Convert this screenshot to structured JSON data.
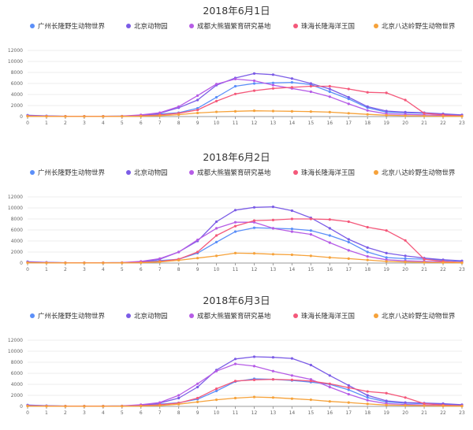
{
  "chart_data": [
    {
      "type": "line",
      "title": "2018年6月1日",
      "x": [
        0,
        1,
        2,
        3,
        4,
        5,
        6,
        7,
        8,
        9,
        10,
        11,
        12,
        13,
        14,
        15,
        16,
        17,
        18,
        19,
        20,
        21,
        22,
        23
      ],
      "ylim": [
        0,
        12000
      ],
      "yticks": [
        0,
        2000,
        4000,
        6000,
        8000,
        10000,
        12000
      ],
      "legend_position": "top",
      "grid": true,
      "series": [
        {
          "name": "广州长隆野生动物世界",
          "color": "#5b8ff9",
          "values": [
            250,
            120,
            60,
            50,
            50,
            80,
            200,
            450,
            700,
            1500,
            3500,
            5500,
            6000,
            6100,
            6200,
            5800,
            4500,
            3200,
            1600,
            800,
            700,
            600,
            400,
            250
          ]
        },
        {
          "name": "北京动物园",
          "color": "#7b5ce6",
          "values": [
            200,
            100,
            50,
            40,
            40,
            60,
            200,
            600,
            1600,
            3000,
            5700,
            7000,
            7800,
            7600,
            6900,
            6000,
            5000,
            3500,
            1800,
            1000,
            800,
            700,
            500,
            300
          ]
        },
        {
          "name": "成都大熊猫繁育研究基地",
          "color": "#b65ce6",
          "values": [
            150,
            80,
            40,
            40,
            40,
            80,
            300,
            700,
            1800,
            3800,
            5900,
            6800,
            6500,
            5700,
            5100,
            4500,
            3600,
            2300,
            1100,
            500,
            400,
            300,
            200,
            100
          ]
        },
        {
          "name": "珠海长隆海洋王国",
          "color": "#f4587a",
          "values": [
            100,
            60,
            40,
            40,
            40,
            60,
            120,
            300,
            600,
            1200,
            2800,
            4100,
            4700,
            5100,
            5300,
            5500,
            5500,
            5000,
            4400,
            4300,
            3000,
            600,
            300,
            100
          ]
        },
        {
          "name": "北京八达岭野生动物世界",
          "color": "#f6a23a",
          "values": [
            50,
            30,
            20,
            20,
            20,
            30,
            60,
            150,
            350,
            650,
            850,
            950,
            1050,
            1000,
            950,
            900,
            800,
            600,
            400,
            250,
            150,
            100,
            60,
            40
          ]
        }
      ]
    },
    {
      "type": "line",
      "title": "2018年6月2日",
      "x": [
        0,
        1,
        2,
        3,
        4,
        5,
        6,
        7,
        8,
        9,
        10,
        11,
        12,
        13,
        14,
        15,
        16,
        17,
        18,
        19,
        20,
        21,
        22,
        23
      ],
      "ylim": [
        0,
        12000
      ],
      "yticks": [
        0,
        2000,
        4000,
        6000,
        8000,
        10000,
        12000
      ],
      "legend_position": "top",
      "grid": true,
      "series": [
        {
          "name": "广州长隆野生动物世界",
          "color": "#5b8ff9",
          "values": [
            250,
            120,
            60,
            50,
            50,
            80,
            200,
            450,
            700,
            1800,
            3800,
            5700,
            6400,
            6300,
            6200,
            5900,
            5000,
            3800,
            2000,
            1000,
            800,
            700,
            500,
            300
          ]
        },
        {
          "name": "北京动物园",
          "color": "#7b5ce6",
          "values": [
            200,
            100,
            50,
            40,
            40,
            60,
            200,
            700,
            2000,
            4000,
            7500,
            9600,
            10100,
            10200,
            9500,
            8200,
            6300,
            4300,
            2800,
            1800,
            1300,
            900,
            600,
            400
          ]
        },
        {
          "name": "成都大熊猫繁育研究基地",
          "color": "#b65ce6",
          "values": [
            150,
            80,
            40,
            40,
            40,
            80,
            300,
            800,
            2000,
            4200,
            6300,
            7400,
            7400,
            6300,
            5700,
            5200,
            3700,
            2300,
            1200,
            600,
            400,
            300,
            200,
            100
          ]
        },
        {
          "name": "珠海长隆海洋王国",
          "color": "#f4587a",
          "values": [
            100,
            60,
            40,
            40,
            40,
            60,
            120,
            300,
            700,
            2000,
            5000,
            6700,
            7700,
            7800,
            8000,
            8000,
            7900,
            7500,
            6500,
            5900,
            4100,
            700,
            300,
            100
          ]
        },
        {
          "name": "北京八达岭野生动物世界",
          "color": "#f6a23a",
          "values": [
            50,
            30,
            20,
            20,
            20,
            30,
            60,
            200,
            500,
            900,
            1300,
            1800,
            1750,
            1600,
            1500,
            1300,
            1000,
            800,
            550,
            300,
            200,
            120,
            80,
            40
          ]
        }
      ]
    },
    {
      "type": "line",
      "title": "2018年6月3日",
      "x": [
        0,
        1,
        2,
        3,
        4,
        5,
        6,
        7,
        8,
        9,
        10,
        11,
        12,
        13,
        14,
        15,
        16,
        17,
        18,
        19,
        20,
        21,
        22,
        23
      ],
      "ylim": [
        0,
        12000
      ],
      "yticks": [
        0,
        2000,
        4000,
        6000,
        8000,
        10000,
        12000
      ],
      "legend_position": "top",
      "grid": true,
      "series": [
        {
          "name": "广州长隆野生动物世界",
          "color": "#5b8ff9",
          "values": [
            250,
            120,
            60,
            50,
            50,
            80,
            200,
            400,
            650,
            1300,
            2800,
            4500,
            5000,
            4900,
            4700,
            4400,
            4000,
            3000,
            1600,
            800,
            600,
            500,
            400,
            250
          ]
        },
        {
          "name": "北京动物园",
          "color": "#7b5ce6",
          "values": [
            200,
            100,
            50,
            40,
            40,
            60,
            200,
            600,
            1500,
            3500,
            6600,
            8600,
            9000,
            8900,
            8700,
            7500,
            5600,
            3800,
            2000,
            1000,
            700,
            600,
            500,
            300
          ]
        },
        {
          "name": "成都大熊猫繁育研究基地",
          "color": "#b65ce6",
          "values": [
            150,
            80,
            40,
            40,
            40,
            80,
            300,
            700,
            2000,
            4100,
            6400,
            7700,
            7300,
            6400,
            5600,
            4900,
            3500,
            2200,
            1100,
            500,
            350,
            250,
            150,
            100
          ]
        },
        {
          "name": "珠海长隆海洋王国",
          "color": "#f4587a",
          "values": [
            100,
            60,
            40,
            40,
            40,
            60,
            120,
            300,
            600,
            1500,
            3200,
            4600,
            4800,
            4900,
            4800,
            4600,
            4100,
            3400,
            2700,
            2400,
            1600,
            500,
            250,
            100
          ]
        },
        {
          "name": "北京八达岭野生动物世界",
          "color": "#f6a23a",
          "values": [
            50,
            30,
            20,
            20,
            20,
            30,
            60,
            150,
            400,
            800,
            1200,
            1500,
            1700,
            1600,
            1400,
            1200,
            900,
            700,
            450,
            250,
            180,
            120,
            70,
            40
          ]
        }
      ]
    }
  ]
}
